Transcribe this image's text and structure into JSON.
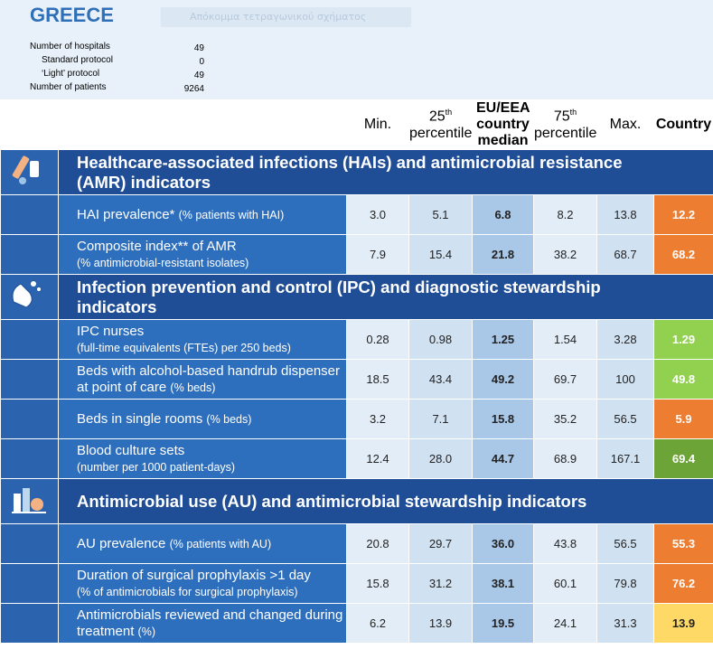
{
  "header": {
    "title": "GREECE",
    "placeholder": "Απόκομμα τετραγωνικού σχήματος",
    "info": [
      {
        "label": "Number of hospitals",
        "value": "49"
      },
      {
        "label": "Standard protocol",
        "value": "0"
      },
      {
        "label": "‘Light’ protocol",
        "value": "49"
      },
      {
        "label": "Number of patients",
        "value": "9264"
      }
    ]
  },
  "table": {
    "columns": [
      {
        "main": "Min."
      },
      {
        "main": "25",
        "sup": "th",
        "sub": "percentile"
      },
      {
        "main": "EU/EEA country median"
      },
      {
        "main": "75",
        "sup": "th",
        "sub": "percentile"
      },
      {
        "main": "Max."
      },
      {
        "main": "Country"
      }
    ],
    "sections": [
      {
        "title": "Healthcare-associated infections (HAIs) and antimicrobial resistance (AMR) indicators",
        "rows": [
          {
            "label": "HAI prevalence*",
            "note": "(% patients with HAI)",
            "values": [
              "3.0",
              "5.1",
              "6.8",
              "8.2",
              "13.8",
              "12.2"
            ],
            "country_color": "#ed7d31"
          },
          {
            "label": "Composite index** of AMR",
            "note": "(% antimicrobial-resistant isolates)",
            "values": [
              "7.9",
              "15.4",
              "21.8",
              "38.2",
              "68.7",
              "68.2"
            ],
            "country_color": "#ed7d31"
          }
        ]
      },
      {
        "title": "Infection prevention and control (IPC) and diagnostic stewardship indicators",
        "rows": [
          {
            "label": "IPC nurses",
            "note": "(full-time equivalents (FTEs) per 250 beds)",
            "values": [
              "0.28",
              "0.98",
              "1.25",
              "1.54",
              "3.28",
              "1.29"
            ],
            "country_color": "#92d050"
          },
          {
            "label": "Beds with alcohol-based handrub dispenser at point of care",
            "note": "(% beds)",
            "values": [
              "18.5",
              "43.4",
              "49.2",
              "69.7",
              "100",
              "49.8"
            ],
            "country_color": "#92d050"
          },
          {
            "label": "Beds in single rooms",
            "note": "(% beds)",
            "values": [
              "3.2",
              "7.1",
              "15.8",
              "35.2",
              "56.5",
              "5.9"
            ],
            "country_color": "#ed7d31"
          },
          {
            "label": "Blood culture sets",
            "note": "(number per 1000 patient-days)",
            "values": [
              "12.4",
              "28.0",
              "44.7",
              "68.9",
              "167.1",
              "69.4"
            ],
            "country_color": "#6ca438"
          }
        ]
      },
      {
        "title": "Antimicrobial use (AU) and antimicrobial stewardship indicators",
        "rows": [
          {
            "label": "AU prevalence",
            "note": "(% patients with AU)",
            "values": [
              "20.8",
              "29.7",
              "36.0",
              "43.8",
              "56.5",
              "55.3"
            ],
            "country_color": "#ed7d31"
          },
          {
            "label": "Duration of surgical prophylaxis >1 day",
            "note": "(% of antimicrobials for surgical prophylaxis)",
            "values": [
              "15.8",
              "31.2",
              "38.1",
              "60.1",
              "79.8",
              "76.2"
            ],
            "country_color": "#ed7d31"
          },
          {
            "label": "Antimicrobials reviewed and changed during treatment",
            "note": "(%)",
            "values": [
              "6.2",
              "13.9",
              "19.5",
              "24.1",
              "31.3",
              "13.9"
            ],
            "country_color": "#ffd966"
          }
        ]
      }
    ]
  }
}
